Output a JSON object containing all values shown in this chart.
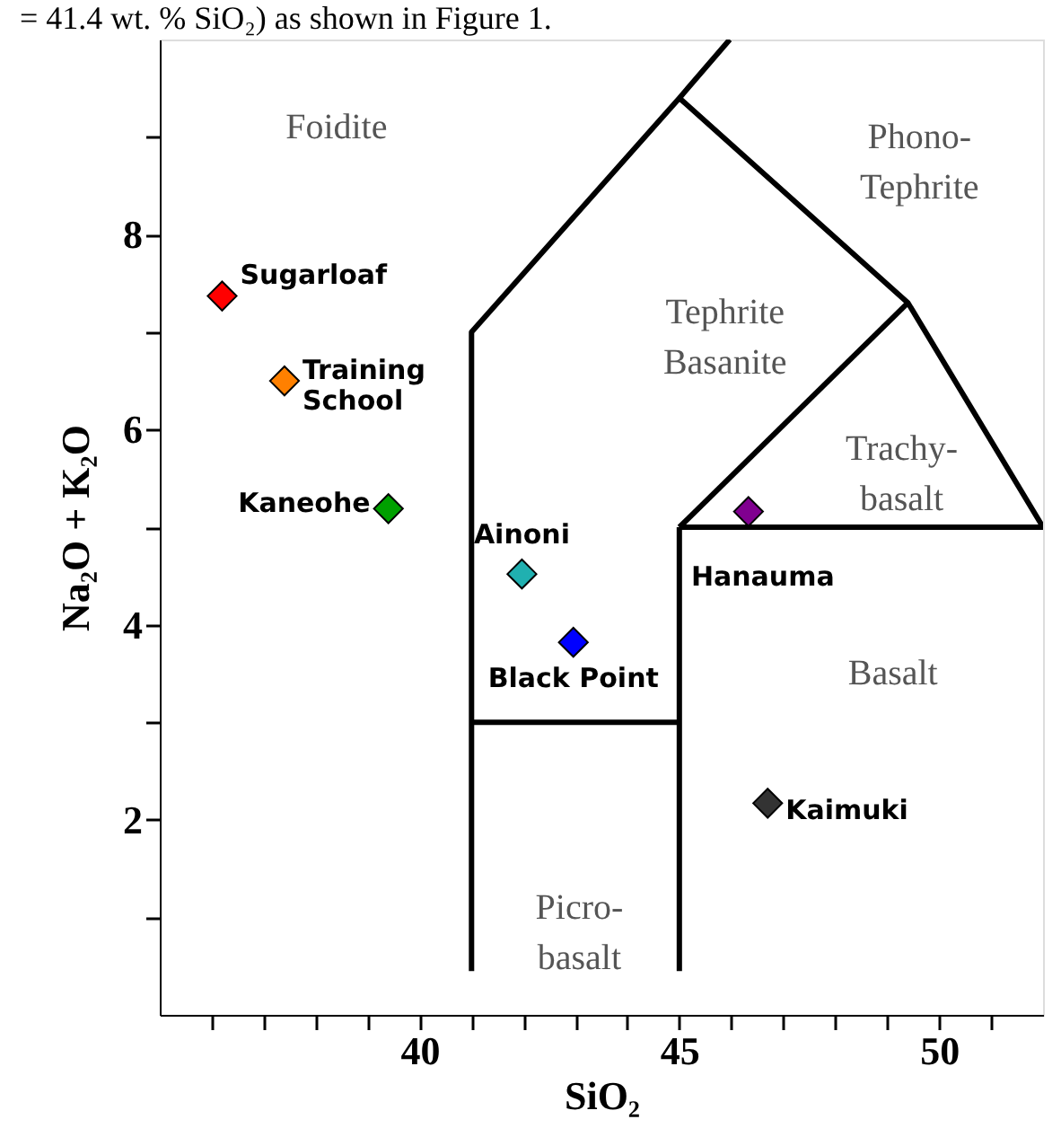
{
  "chart_data": {
    "type": "scatter",
    "xlabel": "SiO₂",
    "ylabel": "Na₂O + K₂O",
    "xlim": [
      35,
      52
    ],
    "ylim": [
      0,
      10
    ],
    "xticks": [
      {
        "value": 36,
        "label": null
      },
      {
        "value": 37,
        "label": null
      },
      {
        "value": 38,
        "label": null
      },
      {
        "value": 39,
        "label": null
      },
      40,
      {
        "value": 41,
        "label": null
      },
      {
        "value": 42,
        "label": null
      },
      {
        "value": 43,
        "label": null
      },
      {
        "value": 44,
        "label": null
      },
      45,
      {
        "value": 46,
        "label": null
      },
      {
        "value": 47,
        "label": null
      },
      {
        "value": 48,
        "label": null
      },
      {
        "value": 49,
        "label": null
      },
      50,
      {
        "value": 51,
        "label": null
      }
    ],
    "yticks": [
      {
        "value": 1,
        "label": null
      },
      2,
      {
        "value": 3,
        "label": null
      },
      4,
      {
        "value": 5,
        "label": null
      },
      6,
      {
        "value": 7,
        "label": null
      },
      8,
      {
        "value": 9,
        "label": null
      }
    ],
    "series": [
      {
        "type": "line",
        "color": "#000000",
        "x": [
          41,
          41,
          45,
          45.97
        ],
        "values": [
          0.45,
          7,
          9.4,
          10
        ]
      },
      {
        "type": "line",
        "color": "#000000",
        "x": [
          45,
          45
        ],
        "values": [
          0.45,
          5
        ]
      },
      {
        "type": "line",
        "color": "#000000",
        "x": [
          41,
          45
        ],
        "values": [
          3,
          3
        ]
      },
      {
        "type": "line",
        "color": "#000000",
        "x": [
          45,
          52
        ],
        "values": [
          5,
          5
        ]
      },
      {
        "type": "line",
        "color": "#000000",
        "x": [
          45,
          49.4,
          52
        ],
        "values": [
          9.4,
          7.3,
          5
        ]
      },
      {
        "type": "line",
        "color": "#000000",
        "x": [
          45,
          49.4
        ],
        "values": [
          5,
          7.3
        ]
      },
      {
        "name": "Sugarloaf",
        "color": "#ff0000",
        "marker": "diamond",
        "x": [
          36.2
        ],
        "values": [
          7.37
        ]
      },
      {
        "name": "Training\nSchool",
        "color": "#ff8000",
        "marker": "diamond",
        "x": [
          37.4
        ],
        "values": [
          6.5
        ]
      },
      {
        "name": "Kaneohe",
        "color": "#00a000",
        "marker": "diamond",
        "x": [
          39.4
        ],
        "values": [
          5.19
        ]
      },
      {
        "name": "Ainoni",
        "color": "#20b0b0",
        "marker": "diamond",
        "x": [
          41.97
        ],
        "values": [
          4.52
        ]
      },
      {
        "name": "Black Point",
        "color": "#0000ff",
        "marker": "diamond",
        "x": [
          42.96
        ],
        "values": [
          3.82
        ]
      },
      {
        "name": "Hanauma",
        "color": "#800090",
        "marker": "diamond",
        "x": [
          46.33
        ],
        "values": [
          5.16
        ]
      },
      {
        "name": "Kaimuki",
        "color": "#333333",
        "marker": "diamond",
        "x": [
          46.7
        ],
        "values": [
          2.17
        ]
      }
    ],
    "annotations": [
      "= 41.4 wt. % SiO₂) as shown in Figure 1.",
      "Foidite",
      "Phono-\nTephrite",
      "Tephrite\nBasanite",
      "Trachy-\nbasalt",
      "Basalt",
      "Picro-\nbasalt"
    ]
  }
}
